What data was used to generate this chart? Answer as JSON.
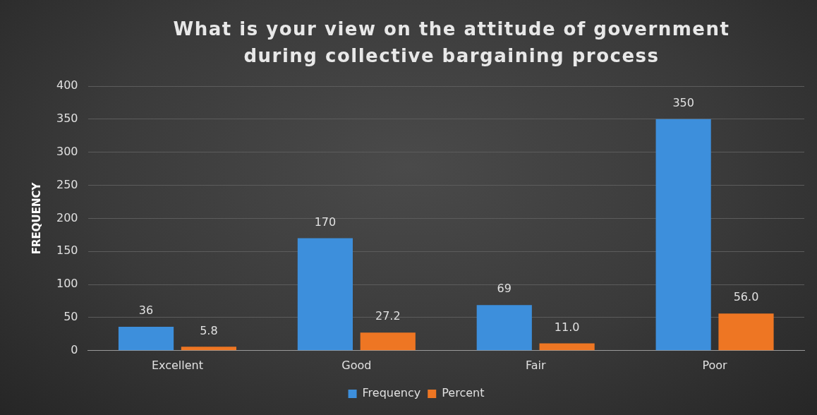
{
  "chart_data": {
    "type": "bar",
    "title": "What is your view on the attitude of government during collective bargaining process",
    "ylabel": "FREQUENCY",
    "categories": [
      "Excellent",
      "Good",
      "Fair",
      "Poor"
    ],
    "series": [
      {
        "name": "Frequency",
        "color": "#3d8fdc",
        "values": [
          36,
          170,
          69,
          350
        ],
        "value_labels": [
          "36",
          "170",
          "69",
          "350"
        ]
      },
      {
        "name": "Percent",
        "color": "#ee7623",
        "values": [
          5.8,
          27.2,
          11.0,
          56.0
        ],
        "value_labels": [
          "5.8",
          "27.2",
          "11.0",
          "56.0"
        ]
      }
    ],
    "ylim": [
      0,
      400
    ],
    "yticks": [
      0,
      50,
      100,
      150,
      200,
      250,
      300,
      350,
      400
    ],
    "grid": "y",
    "legend": "bottom"
  }
}
